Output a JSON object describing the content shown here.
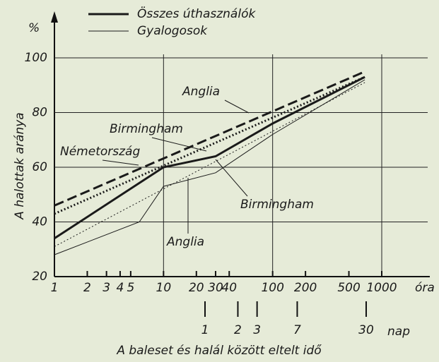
{
  "chart_data": {
    "type": "line",
    "y_unit": "%",
    "ylabel": "A halottak aránya",
    "xlabel": "A baleset és halál között eltelt idő",
    "x_unit": "óra",
    "log_x": true,
    "grid": true,
    "legend": [
      {
        "label": "Összes úthasználók",
        "width": "thick"
      },
      {
        "label": "Gyalogosok",
        "width": "thin"
      }
    ],
    "xlim": [
      1,
      1000
    ],
    "xticks": [
      1,
      2,
      3,
      4,
      5,
      10,
      20,
      30,
      40,
      100,
      200,
      500,
      1000
    ],
    "xgrid": [
      10,
      100,
      1000
    ],
    "ylim": [
      20,
      100
    ],
    "yticks": [
      20,
      40,
      60,
      80,
      100
    ],
    "days_axis": {
      "unit": "nap",
      "ticks": [
        {
          "value": 24,
          "label": "1"
        },
        {
          "value": 48,
          "label": "2"
        },
        {
          "value": 72,
          "label": "3"
        },
        {
          "value": 168,
          "label": "7"
        },
        {
          "value": 720,
          "label": "30"
        }
      ]
    },
    "series": [
      {
        "name": "Anglia",
        "width": "thick",
        "dash": "dashed",
        "color": "#1a1a1a",
        "x": [
          1,
          700
        ],
        "y": [
          46,
          95
        ]
      },
      {
        "name": "Birmingham",
        "width": "thick",
        "dash": "solid",
        "color": "#1a1a1a",
        "x": [
          1,
          10,
          30,
          100,
          700
        ],
        "y": [
          34,
          60,
          64,
          76,
          93
        ]
      },
      {
        "name": "Németország",
        "width": "thick",
        "dash": "dotted",
        "color": "#1a1a1a",
        "x": [
          1,
          700
        ],
        "y": [
          43,
          93
        ]
      },
      {
        "name": "Birmingham",
        "width": "thin",
        "dash": "solid",
        "color": "#1a1a1a",
        "x": [
          1,
          6,
          10,
          30,
          100,
          700
        ],
        "y": [
          28,
          40,
          53,
          58,
          72,
          92
        ]
      },
      {
        "name": "Anglia",
        "width": "thin",
        "dash": "dotted",
        "color": "#1a1a1a",
        "x": [
          1,
          700
        ],
        "y": [
          31,
          91
        ]
      }
    ]
  }
}
